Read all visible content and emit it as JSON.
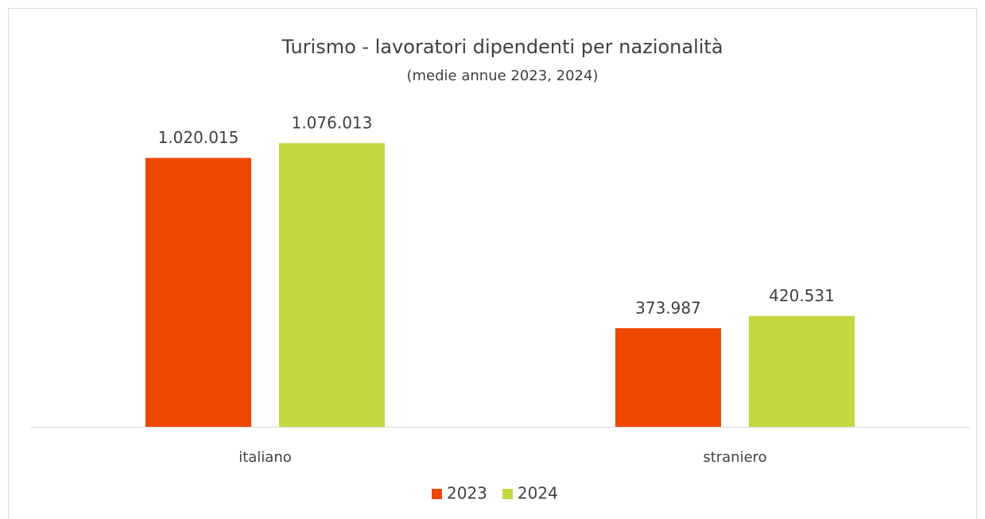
{
  "chart_data": {
    "type": "bar",
    "title": "Turismo - lavoratori dipendenti per nazionalità",
    "subtitle": "(medie annue 2023, 2024)",
    "categories": [
      "italiano",
      "straniero"
    ],
    "series": [
      {
        "name": "2023",
        "color": "#ee4800",
        "values": [
          1020015,
          373987
        ],
        "value_labels": [
          "1.020.015",
          "373.987"
        ]
      },
      {
        "name": "2024",
        "color": "#c5d840",
        "values": [
          1076013,
          420531
        ],
        "value_labels": [
          "1.076.013",
          "420.531"
        ]
      }
    ],
    "ylim": [
      0,
      1200000
    ],
    "legend": "bottom"
  }
}
